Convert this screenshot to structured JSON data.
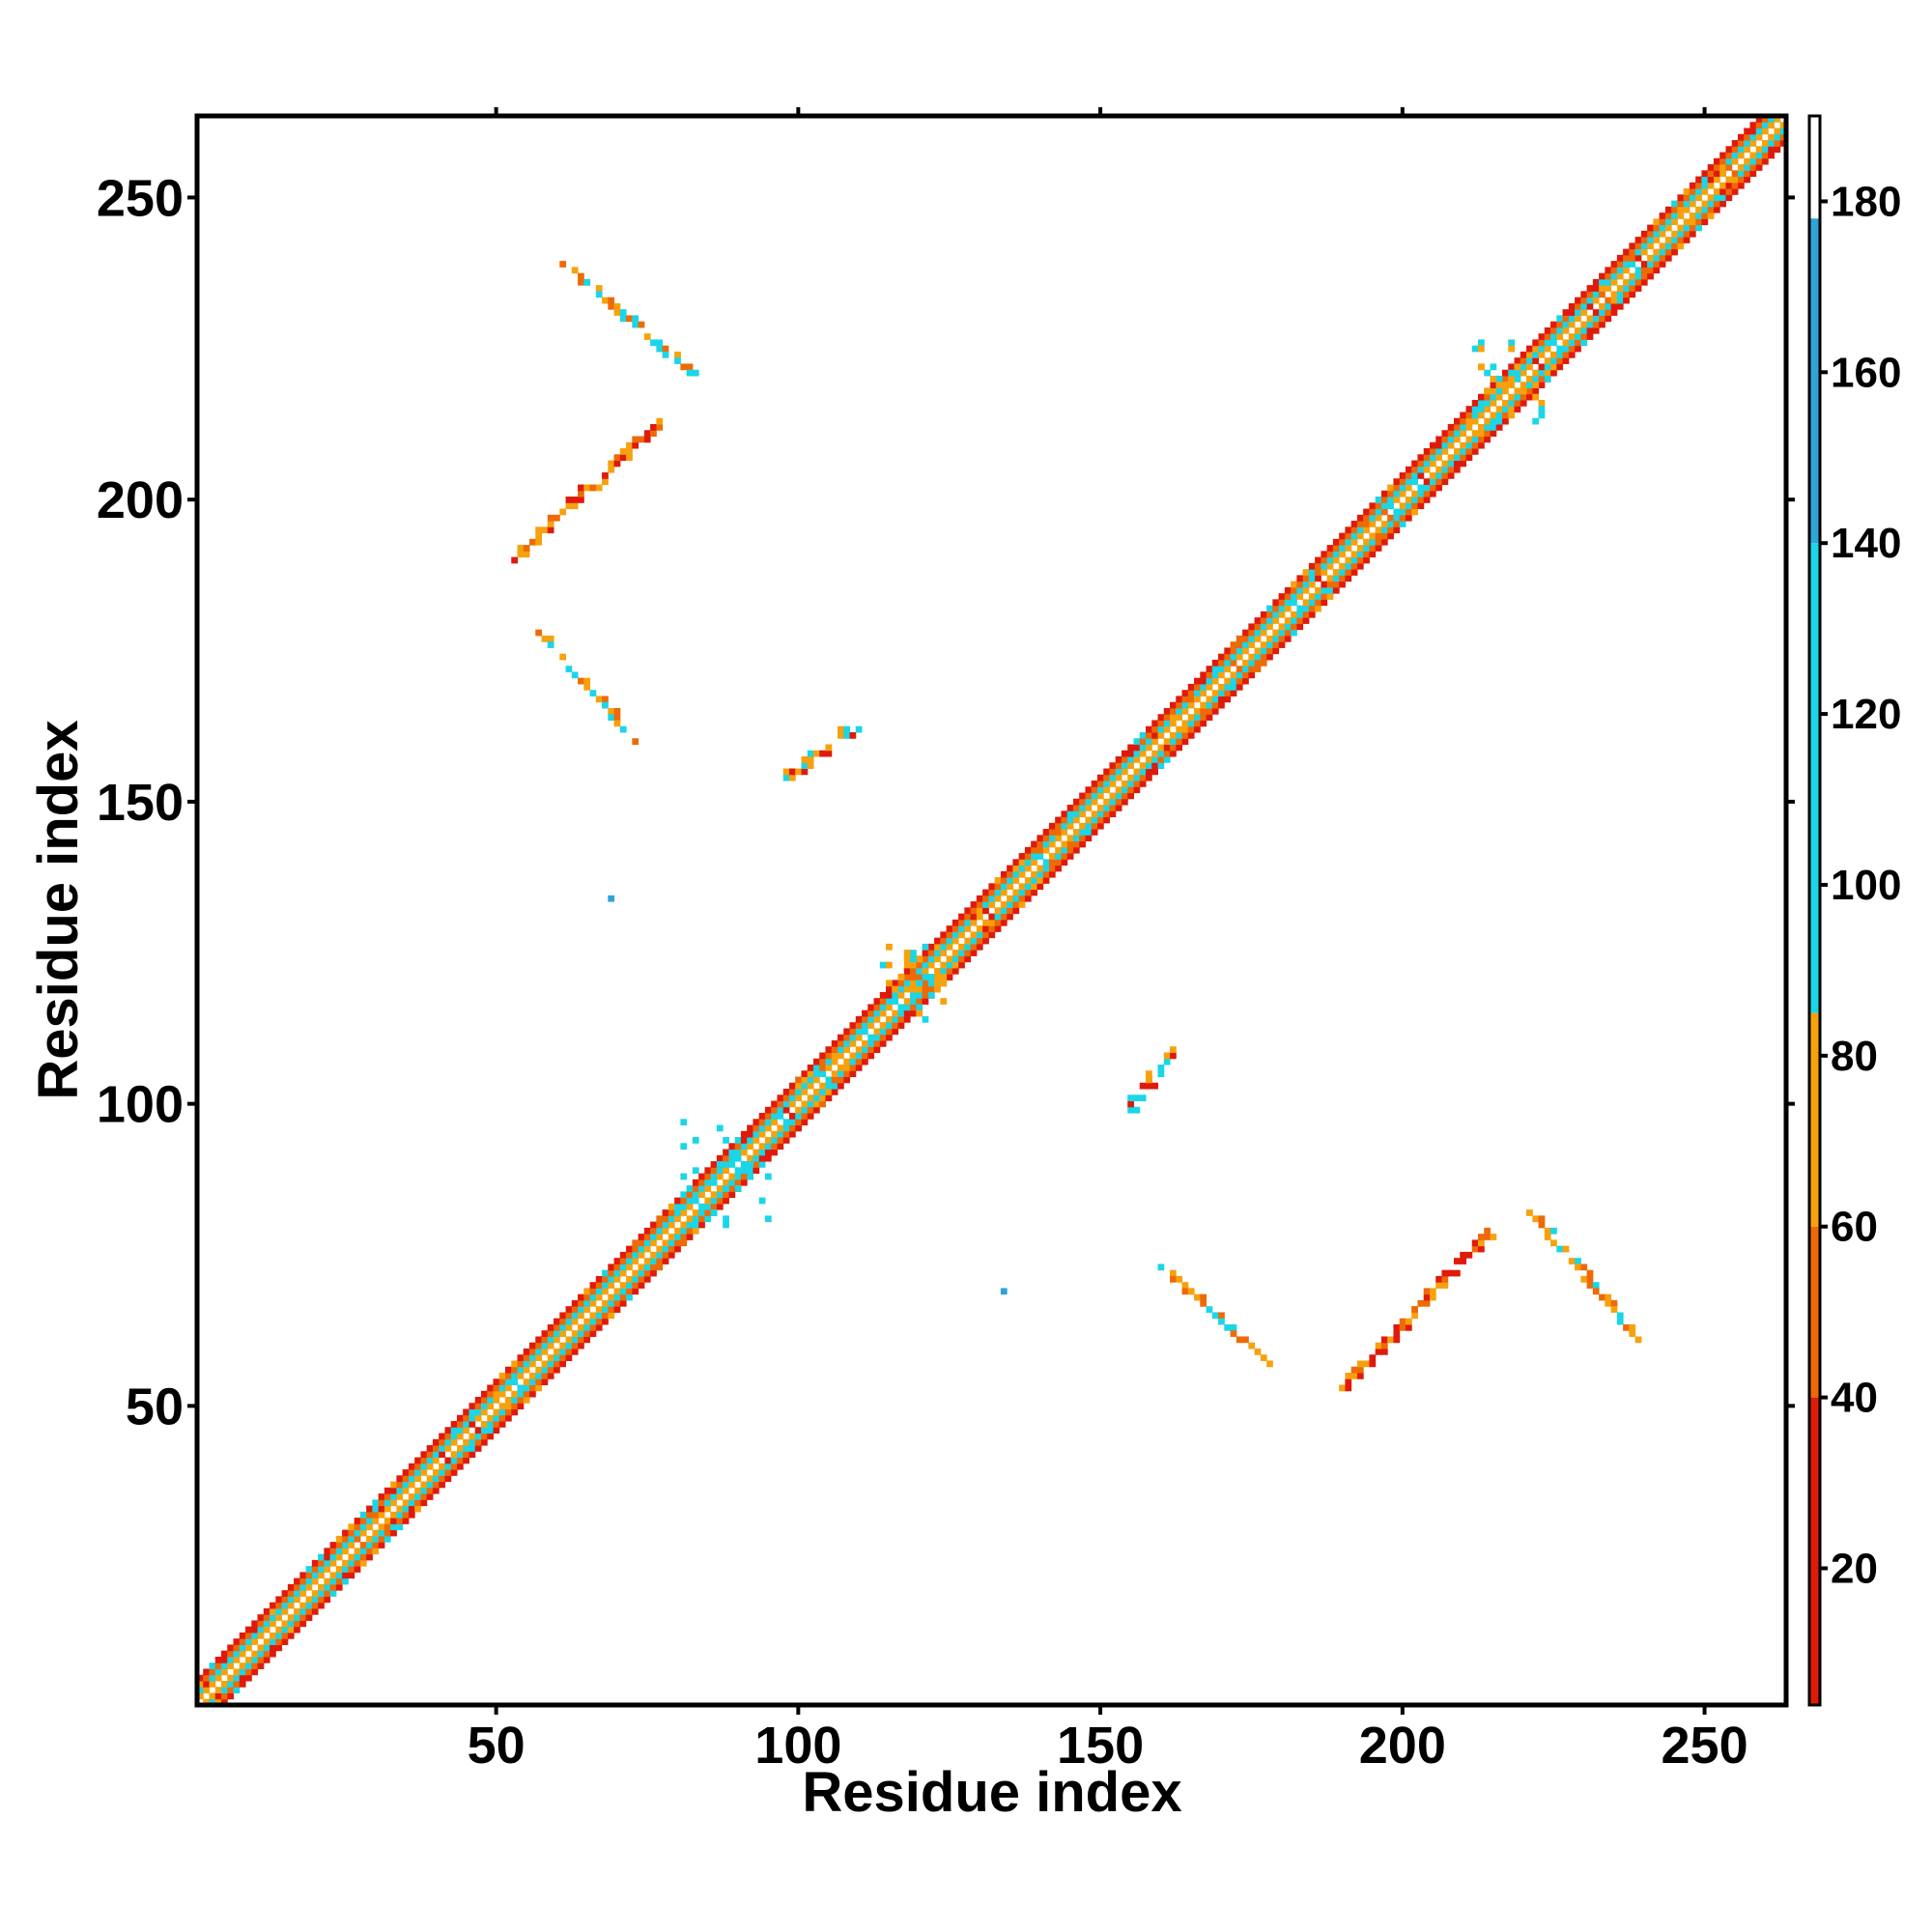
{
  "chart_data": {
    "type": "heatmap",
    "title": "",
    "xlabel": "Residue index",
    "ylabel": "Residue index",
    "xlim": [
      1,
      263
    ],
    "ylim": [
      1,
      263
    ],
    "x_ticks": [
      50,
      100,
      150,
      200,
      250
    ],
    "y_ticks": [
      50,
      100,
      150,
      200,
      250
    ],
    "x_tick_labels": [
      "50",
      "100",
      "150",
      "200",
      "250"
    ],
    "y_tick_labels": [
      "50",
      "100",
      "150",
      "200",
      "250"
    ],
    "grid": false,
    "colorbar": {
      "range": [
        4,
        190
      ],
      "ticks": [
        20,
        40,
        60,
        80,
        100,
        120,
        140,
        160,
        180
      ],
      "tick_labels": [
        "20",
        "40",
        "60",
        "80",
        "100",
        "120",
        "140",
        "160",
        "180"
      ],
      "bands": [
        {
          "from": 4,
          "to": 40,
          "color": "#e01a0a"
        },
        {
          "from": 40,
          "to": 60,
          "color": "#ee6a06"
        },
        {
          "from": 60,
          "to": 85,
          "color": "#f7a10c"
        },
        {
          "from": 85,
          "to": 140,
          "color": "#1ad6e6"
        },
        {
          "from": 140,
          "to": 178,
          "color": "#2fa4d6"
        },
        {
          "from": 178,
          "to": 190,
          "color": "#ffffff"
        }
      ]
    },
    "diagonal": {
      "from": 1,
      "to": 263
    },
    "contact_clusters": [
      {
        "x": [
          61,
          82
        ],
        "y": [
          221,
          239
        ],
        "direction": "anti",
        "colors": [
          "#f7a10c",
          "#1ad6e6",
          "#ee6a06"
        ]
      },
      {
        "x": [
          53,
          78
        ],
        "y": [
          190,
          214
        ],
        "direction": "parallel",
        "colors": [
          "#e01a0a",
          "#f7a10c",
          "#ee6a06"
        ]
      },
      {
        "x": [
          57,
          73
        ],
        "y": [
          160,
          178
        ],
        "direction": "anti",
        "colors": [
          "#f7a10c",
          "#1ad6e6",
          "#ee6a06"
        ]
      },
      {
        "x": [
          98,
          109
        ],
        "y": [
          154,
          162
        ],
        "direction": "parallel",
        "colors": [
          "#e01a0a",
          "#f7a10c",
          "#1ad6e6"
        ]
      },
      {
        "x": [
          69,
          69
        ],
        "y": [
          134,
          134
        ],
        "direction": "point",
        "colors": [
          "#2fa4d6"
        ]
      },
      {
        "x": [
          154,
          162
        ],
        "y": [
          98,
          109
        ],
        "direction": "parallel",
        "colors": [
          "#e01a0a",
          "#f7a10c",
          "#1ad6e6"
        ]
      },
      {
        "x": [
          134,
          134
        ],
        "y": [
          69,
          69
        ],
        "direction": "point",
        "colors": [
          "#2fa4d6"
        ]
      },
      {
        "x": [
          160,
          178
        ],
        "y": [
          57,
          73
        ],
        "direction": "anti",
        "colors": [
          "#f7a10c",
          "#1ad6e6",
          "#ee6a06"
        ]
      },
      {
        "x": [
          190,
          214
        ],
        "y": [
          53,
          78
        ],
        "direction": "parallel",
        "colors": [
          "#e01a0a",
          "#f7a10c",
          "#ee6a06"
        ]
      },
      {
        "x": [
          221,
          239
        ],
        "y": [
          61,
          82
        ],
        "direction": "anti",
        "colors": [
          "#f7a10c",
          "#1ad6e6",
          "#ee6a06"
        ]
      },
      {
        "x": [
          80,
          95
        ],
        "y": [
          80,
          98
        ],
        "direction": "cross",
        "colors": [
          "#1ad6e6"
        ]
      },
      {
        "x": [
          114,
          125
        ],
        "y": [
          114,
          126
        ],
        "direction": "cross",
        "colors": [
          "#1ad6e6",
          "#f7a10c"
        ]
      },
      {
        "x": [
          212,
          224
        ],
        "y": [
          212,
          226
        ],
        "direction": "cross",
        "colors": [
          "#1ad6e6",
          "#f7a10c"
        ]
      }
    ]
  }
}
